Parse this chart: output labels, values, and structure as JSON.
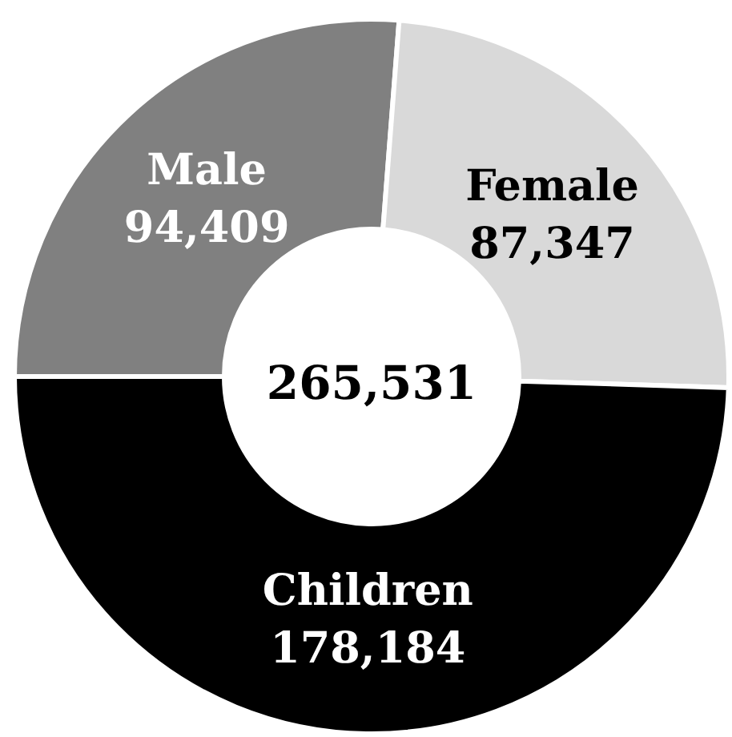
{
  "chart_data": {
    "type": "donut",
    "categories": [
      "Male",
      "Female",
      "Children"
    ],
    "values": [
      94409,
      87347,
      178184
    ],
    "colors": [
      "#808080",
      "#d9d9d9",
      "#000000"
    ],
    "value_labels": [
      "94,409",
      "87,347",
      "178,184"
    ],
    "annotations": [
      "265,531"
    ]
  }
}
